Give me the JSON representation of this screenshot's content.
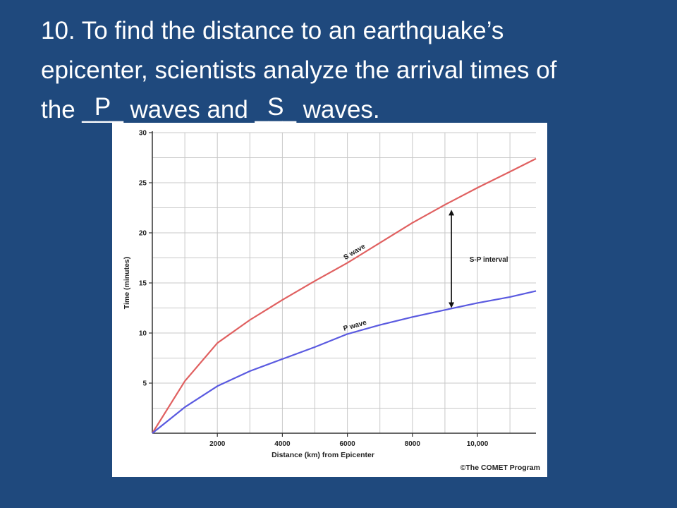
{
  "question": {
    "line1": "10. To find the distance to an earthquake’s",
    "line2": "epicenter, scientists analyze the arrival times of",
    "line3_start": "the ",
    "blank1_lines": "___",
    "blank1_answer": "P",
    "line3_mid": " waves and ",
    "blank2_lines": "___",
    "blank2_answer": "S",
    "line3_end": " waves."
  },
  "colors": {
    "background": "#1f497d",
    "s_wave": "#e06060",
    "p_wave": "#5a5ae0",
    "grid": "#c8c8c8"
  },
  "chart_data": {
    "type": "line",
    "xlabel": "Distance (km) from Epicenter",
    "ylabel": "Time (minutes)",
    "xlim": [
      0,
      11800
    ],
    "ylim": [
      0,
      30
    ],
    "x_ticks": [
      2000,
      4000,
      6000,
      8000,
      10000
    ],
    "x_tick_labels": [
      "2000",
      "4000",
      "6000",
      "8000",
      "10,000"
    ],
    "y_ticks": [
      5,
      10,
      15,
      20,
      25,
      30
    ],
    "y_tick_labels": [
      "5",
      "10",
      "15",
      "20",
      "25",
      "30"
    ],
    "grid": true,
    "series": [
      {
        "name": "S wave",
        "color": "#e06060",
        "x": [
          0,
          1000,
          2000,
          3000,
          4000,
          5000,
          6000,
          7000,
          8000,
          9000,
          10000,
          11000,
          11800
        ],
        "y": [
          0,
          5.2,
          9.0,
          11.3,
          13.3,
          15.2,
          17.0,
          19.0,
          21.0,
          22.8,
          24.5,
          26.1,
          27.4
        ]
      },
      {
        "name": "P wave",
        "color": "#5a5ae0",
        "x": [
          0,
          1000,
          2000,
          3000,
          4000,
          5000,
          6000,
          7000,
          8000,
          9000,
          10000,
          11000,
          11800
        ],
        "y": [
          0,
          2.6,
          4.7,
          6.2,
          7.4,
          8.6,
          9.9,
          10.8,
          11.6,
          12.3,
          13.0,
          13.6,
          14.2
        ]
      }
    ],
    "annotations": {
      "s_label": "S wave",
      "p_label": "P wave",
      "interval_label": "S-P interval",
      "interval_x": 9200,
      "interval_y_top": 22.3,
      "interval_y_bottom": 12.5,
      "credit": "©The COMET Program"
    }
  }
}
